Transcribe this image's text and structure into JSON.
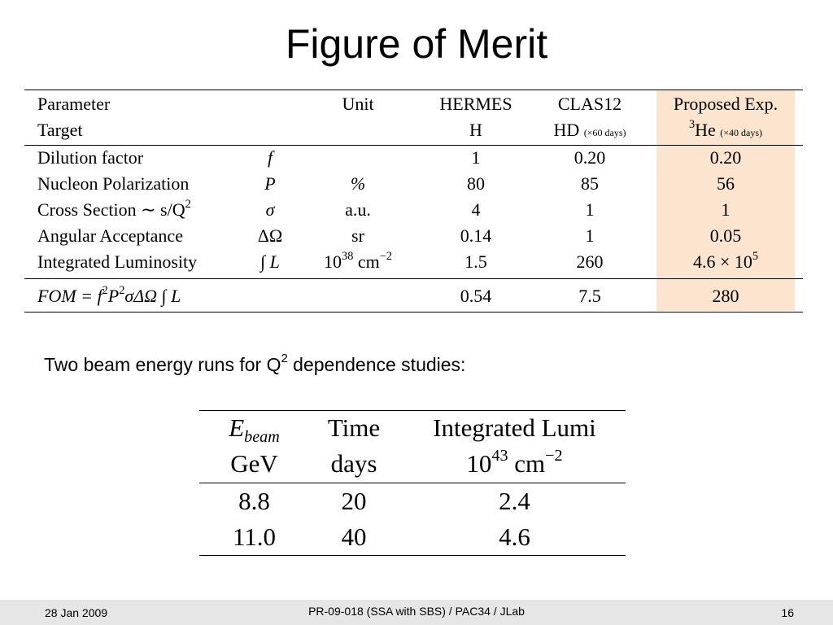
{
  "slide": {
    "title": "Figure of Merit",
    "subtitle_text_before": "Two beam energy runs for Q",
    "subtitle_sup": "2",
    "subtitle_text_after": " dependence studies:"
  },
  "fom_table": {
    "header": {
      "parameter": "Parameter",
      "unit": "Unit",
      "hermes": "HERMES",
      "clas12": "CLAS12",
      "proposed": "Proposed Exp."
    },
    "target_row": {
      "label": "Target",
      "hermes": "H",
      "clas12_main": "HD",
      "clas12_note": "(×60 days)",
      "proposed_sup": "3",
      "proposed_main": "He",
      "proposed_note": "(×40 days)"
    },
    "rows": [
      {
        "param": "Dilution factor",
        "symbol": "f",
        "unit": "",
        "hermes": "1",
        "clas12": "0.20",
        "proposed": "0.20"
      },
      {
        "param": "Nucleon Polarization",
        "symbol": "P",
        "unit": "%",
        "hermes": "80",
        "clas12": "85",
        "proposed": "56"
      },
      {
        "param": "Cross Section ∼ s/Q",
        "param_sup": "2",
        "symbol": "σ",
        "unit": "a.u.",
        "hermes": "4",
        "clas12": "1",
        "proposed": "1"
      },
      {
        "param": "Angular Acceptance",
        "symbol": "ΔΩ",
        "unit": "sr",
        "hermes": "0.14",
        "clas12": "1",
        "proposed": "0.05"
      },
      {
        "param": "Integrated Luminosity",
        "symbol": "∫ L",
        "unit_base": "10",
        "unit_exp": "38",
        "unit_rest": " cm",
        "unit_rest_exp": "−2",
        "hermes": "1.5",
        "clas12": "260",
        "proposed_base": "4.6 × 10",
        "proposed_exp": "5"
      }
    ],
    "fom_row": {
      "label_a": "FOM = f",
      "sup_a": "2",
      "label_b": "P",
      "sup_b": "2",
      "label_c": "σΔΩ ∫ L",
      "hermes": "0.54",
      "clas12": "7.5",
      "proposed": "280"
    },
    "highlight_color": "#fde4cf"
  },
  "beam_table": {
    "header_row1": {
      "col1_main": "E",
      "col1_sub": "beam",
      "col2": "Time",
      "col3": "Integrated Lumi"
    },
    "header_row2": {
      "col1": "GeV",
      "col2": "days",
      "col3_base": "10",
      "col3_exp": "43",
      "col3_rest": " cm",
      "col3_rest_exp": "−2"
    },
    "rows": [
      {
        "ebeam": "8.8",
        "time": "20",
        "lumi": "2.4"
      },
      {
        "ebeam": "11.0",
        "time": "40",
        "lumi": "4.6"
      }
    ]
  },
  "footer": {
    "date": "28 Jan 2009",
    "center": "PR-09-018 (SSA with SBS) / PAC34 / JLab",
    "page": "16"
  }
}
